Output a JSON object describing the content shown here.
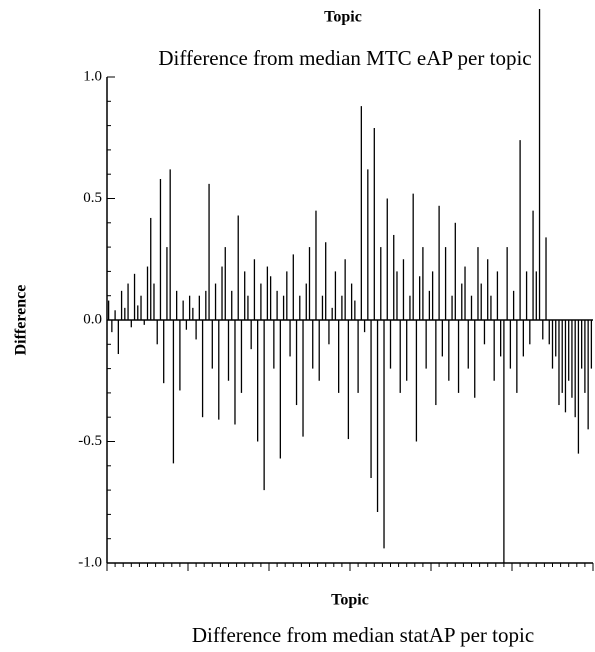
{
  "chart_data": {
    "type": "spike",
    "top_axis_label": "Topic",
    "title": "Difference from median MTC eAP per topic",
    "ylabel": "Difference",
    "xlabel": "Topic",
    "bottom_title": "Difference from median statAP per topic",
    "color": "#000000",
    "ylim": [
      -1,
      1
    ],
    "yticks": [
      {
        "value": -1,
        "label": "-1.0"
      },
      -0.5,
      {
        "value": 0,
        "label": "0.0"
      },
      0.5,
      {
        "value": 1,
        "label": "1.0"
      }
    ],
    "values": [
      0.08,
      -0.05,
      0.04,
      -0.14,
      0.12,
      0.05,
      0.15,
      -0.03,
      0.19,
      0.06,
      0.1,
      -0.02,
      0.22,
      0.42,
      0.15,
      -0.1,
      0.58,
      -0.26,
      0.3,
      0.62,
      -0.59,
      0.12,
      -0.29,
      0.08,
      -0.04,
      0.1,
      0.05,
      -0.08,
      0.1,
      -0.4,
      0.12,
      0.56,
      -0.2,
      0.15,
      -0.41,
      0.22,
      0.3,
      -0.25,
      0.12,
      -0.43,
      0.43,
      -0.3,
      0.2,
      0.1,
      -0.12,
      0.25,
      -0.5,
      0.15,
      -0.7,
      0.22,
      0.18,
      -0.2,
      0.12,
      -0.57,
      0.1,
      0.2,
      -0.15,
      0.27,
      -0.35,
      0.1,
      -0.48,
      0.15,
      0.3,
      -0.2,
      0.45,
      -0.25,
      0.1,
      0.32,
      -0.1,
      0.05,
      0.2,
      -0.3,
      0.1,
      0.25,
      -0.49,
      0.15,
      0.08,
      -0.3,
      0.88,
      -0.05,
      0.62,
      -0.65,
      0.79,
      -0.79,
      0.3,
      -0.94,
      0.5,
      -0.2,
      0.35,
      0.2,
      -0.3,
      0.25,
      -0.25,
      0.1,
      0.52,
      -0.5,
      0.18,
      0.3,
      -0.2,
      0.12,
      0.2,
      -0.35,
      0.47,
      -0.15,
      0.3,
      -0.25,
      0.1,
      0.4,
      -0.3,
      0.15,
      0.22,
      -0.2,
      0.1,
      -0.32,
      0.3,
      0.15,
      -0.1,
      0.25,
      0.1,
      -0.25,
      0.2,
      -0.15,
      -1.0,
      0.3,
      -0.2,
      0.12,
      -0.3,
      0.74,
      -0.15,
      0.2,
      -0.1,
      0.45,
      0.2,
      1.28,
      -0.08,
      0.34,
      -0.1,
      -0.2,
      -0.15,
      -0.35,
      -0.3,
      -0.38,
      -0.25,
      -0.32,
      -0.4,
      -0.55,
      -0.2,
      -0.3,
      -0.45,
      -0.2
    ]
  }
}
